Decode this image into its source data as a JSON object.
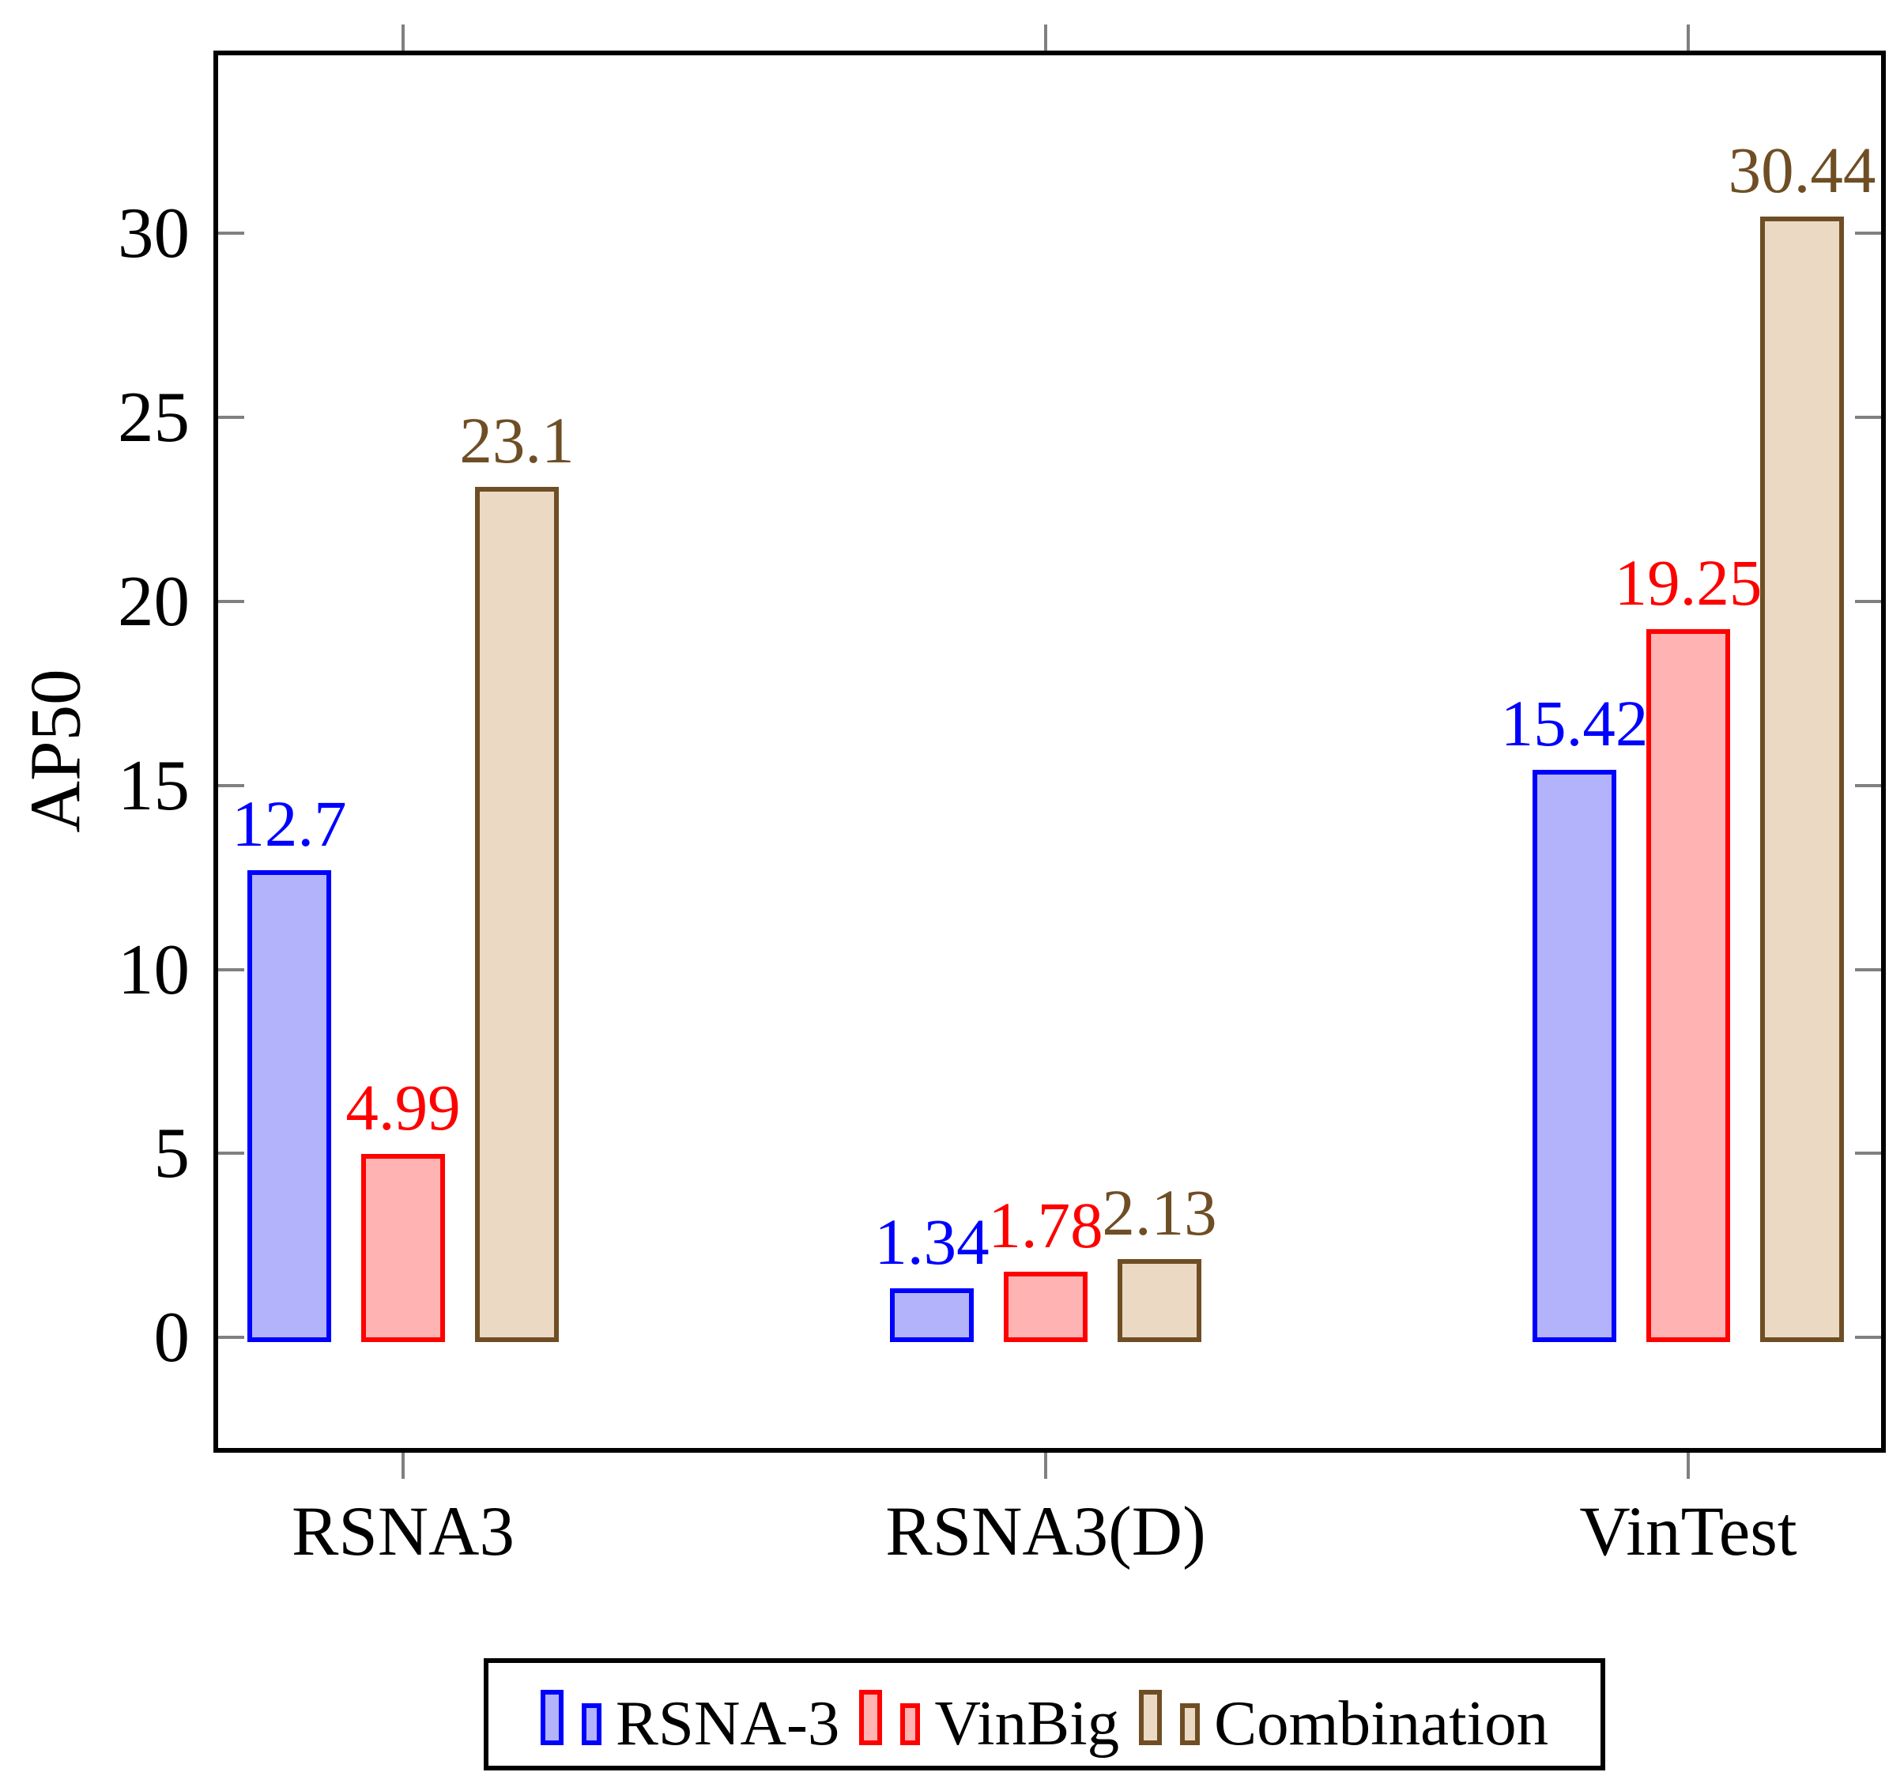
{
  "chart_data": {
    "type": "bar",
    "title": "",
    "xlabel": "",
    "ylabel": "AP50",
    "categories": [
      "RSNA3",
      "RSNA3(D)",
      "VinTest"
    ],
    "series": [
      {
        "name": "RSNA-3",
        "values": [
          12.7,
          1.34,
          15.42
        ],
        "edge_color": "#0000FF",
        "fill_color": "#B3B3FB"
      },
      {
        "name": "VinBig",
        "values": [
          4.99,
          1.78,
          19.25
        ],
        "edge_color": "#FF0000",
        "fill_color": "#FFB3B3"
      },
      {
        "name": "Combination",
        "values": [
          23.1,
          2.13,
          30.44
        ],
        "edge_color": "#6F4E25",
        "fill_color": "#EBD9C3"
      }
    ],
    "bar_value_labels_shown": true,
    "yticks": [
      0,
      5,
      10,
      15,
      20,
      25,
      30
    ],
    "ytick_labels": [
      "0",
      "5",
      "10",
      "15",
      "20",
      "25",
      "30"
    ],
    "ylim": [
      -3,
      34.83
    ],
    "grid": false,
    "axis_frame_color": "#000000",
    "tick_color": "#808080",
    "legend": {
      "position": "below",
      "entries": [
        "RSNA-3",
        "VinBig",
        "Combination"
      ]
    }
  }
}
